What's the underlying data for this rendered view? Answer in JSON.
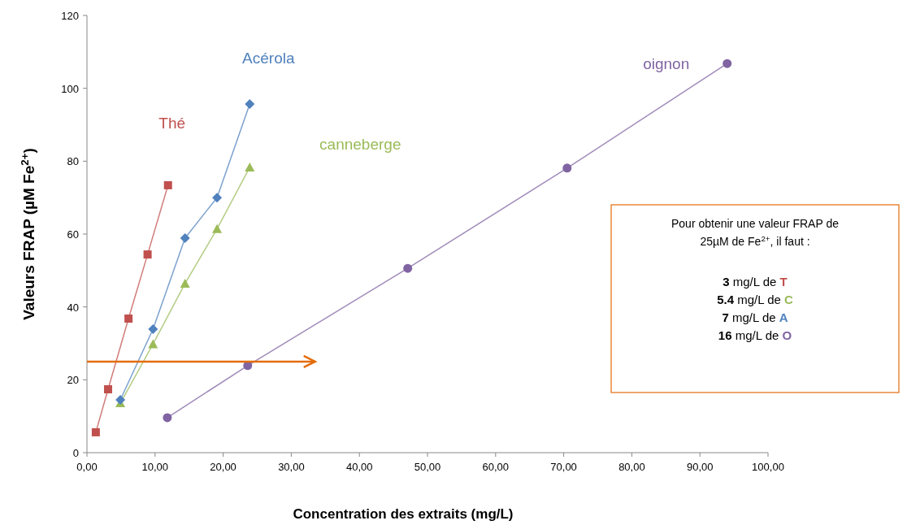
{
  "chart_data": {
    "type": "line",
    "xlabel": "Concentration des extraits (mg/L)",
    "ylabel": "Valeurs FRAP (µM Fe$^{2+}$)",
    "xlim": [
      0,
      100
    ],
    "xticks": [
      {
        "value": 0,
        "label": "0,00"
      },
      {
        "value": 10,
        "label": "10,00"
      },
      {
        "value": 20,
        "label": "20,00"
      },
      {
        "value": 30,
        "label": "30,00"
      },
      {
        "value": 40,
        "label": "40,00"
      },
      {
        "value": 50,
        "label": "50,00"
      },
      {
        "value": 60,
        "label": "60,00"
      },
      {
        "value": 70,
        "label": "70,00"
      },
      {
        "value": 80,
        "label": "80,00"
      },
      {
        "value": 90,
        "label": "90,00"
      },
      {
        "value": 100,
        "label": "100,00"
      }
    ],
    "ylim": [
      0,
      120
    ],
    "yticks": [
      0,
      20,
      40,
      60,
      80,
      100,
      120
    ],
    "grid": false,
    "series": [
      {
        "name": "Thé",
        "color": "#c0504d",
        "marker": "square",
        "x": [
          1.3,
          3.1,
          6.1,
          8.9,
          11.9
        ],
        "values": [
          5.6,
          17.4,
          36.8,
          54.4,
          73.4
        ]
      },
      {
        "name": "canneberge",
        "color": "#9bbb59",
        "marker": "triangle",
        "x": [
          4.9,
          9.7,
          14.4,
          19.1,
          23.9
        ],
        "values": [
          13.6,
          29.8,
          46.4,
          61.4,
          78.3
        ]
      },
      {
        "name": "Acérola",
        "color": "#4f81bd",
        "marker": "diamond",
        "x": [
          4.9,
          9.7,
          14.4,
          19.1,
          23.9
        ],
        "values": [
          14.5,
          33.9,
          58.9,
          70.0,
          95.7
        ]
      },
      {
        "name": "oignon",
        "color": "#8064a2",
        "marker": "circle",
        "x": [
          11.8,
          23.6,
          47.1,
          70.5,
          94.0
        ],
        "values": [
          9.6,
          23.9,
          50.6,
          78.1,
          106.8
        ]
      }
    ],
    "ref_lines": [
      {
        "axis": "y",
        "value": 25,
        "color": "#e46c0a"
      }
    ],
    "annotations": [
      "Pour obtenir une valeur FRAP de",
      "25µM de Fe$^{2+}$, il faut :",
      "3 mg/L de T",
      "5.4 mg/L de C",
      "7 mg/L de A",
      "16 mg/L de O"
    ]
  }
}
